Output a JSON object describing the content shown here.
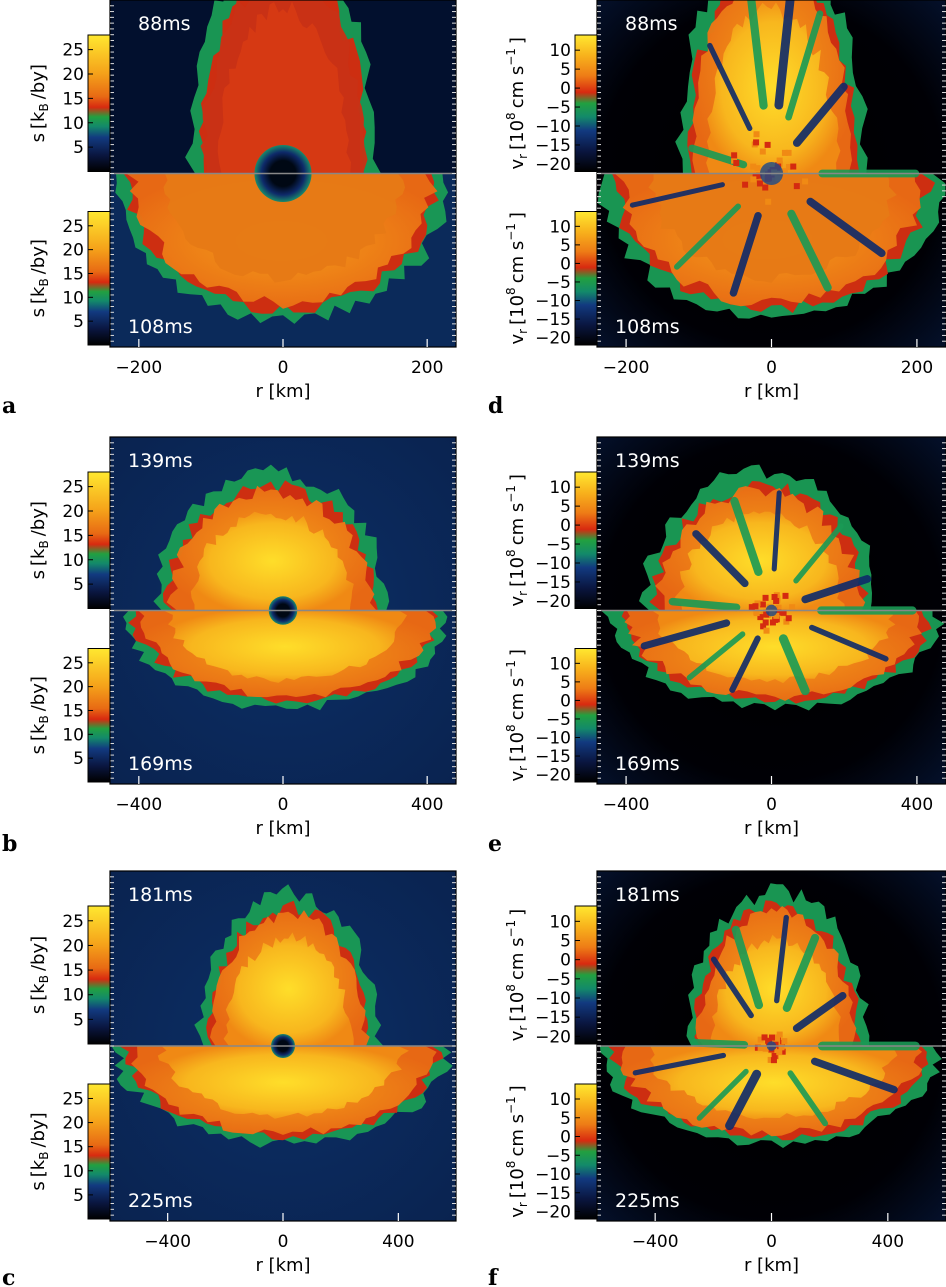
{
  "chart_data": [
    {
      "panel": "a",
      "type": "heatmap",
      "quantity": "s",
      "times": [
        "88ms",
        "108ms"
      ],
      "xlabel": "r [km]",
      "xticks": [
        "−200",
        "0",
        "200"
      ],
      "xlim": [
        -240,
        240
      ],
      "colorbar_ticks": [
        "25",
        "20",
        "15",
        "10",
        "5"
      ],
      "colorbar_range": [
        0,
        28
      ],
      "ylabel_main": "s",
      "ylabel_unit": "[k",
      "ylabel_sub": "B",
      "ylabel_end": "/by]"
    },
    {
      "panel": "b",
      "type": "heatmap",
      "quantity": "s",
      "times": [
        "139ms",
        "169ms"
      ],
      "xlabel": "r [km]",
      "xticks": [
        "−400",
        "0",
        "400"
      ],
      "xlim": [
        -480,
        480
      ],
      "colorbar_ticks": [
        "25",
        "20",
        "15",
        "10",
        "5"
      ],
      "colorbar_range": [
        0,
        28
      ],
      "ylabel_main": "s",
      "ylabel_unit": "[k",
      "ylabel_sub": "B",
      "ylabel_end": "/by]"
    },
    {
      "panel": "c",
      "type": "heatmap",
      "quantity": "s",
      "times": [
        "181ms",
        "225ms"
      ],
      "xlabel": "r [km]",
      "xticks": [
        "−400",
        "0",
        "400"
      ],
      "xlim": [
        -600,
        600
      ],
      "colorbar_ticks": [
        "25",
        "20",
        "15",
        "10",
        "5"
      ],
      "colorbar_range": [
        0,
        28
      ],
      "ylabel_main": "s",
      "ylabel_unit": "[k",
      "ylabel_sub": "B",
      "ylabel_end": "/by]"
    },
    {
      "panel": "d",
      "type": "heatmap",
      "quantity": "vr",
      "times": [
        "88ms",
        "108ms"
      ],
      "xlabel": "r [km]",
      "xticks": [
        "−200",
        "0",
        "200"
      ],
      "xlim": [
        -240,
        240
      ],
      "colorbar_ticks": [
        "10",
        "5",
        "0",
        "−5",
        "−10",
        "−15",
        "−20"
      ],
      "colorbar_range": [
        -22,
        14
      ],
      "ylabel_main": "v",
      "ylabel_sub": "r",
      "ylabel_unit": "[10",
      "ylabel_exp": "8",
      "ylabel_end": "cm s",
      "ylabel_exp2": "−1",
      "ylabel_close": "]"
    },
    {
      "panel": "e",
      "type": "heatmap",
      "quantity": "vr",
      "times": [
        "139ms",
        "169ms"
      ],
      "xlabel": "r [km]",
      "xticks": [
        "−400",
        "0",
        "400"
      ],
      "xlim": [
        -480,
        480
      ],
      "colorbar_ticks": [
        "10",
        "5",
        "0",
        "−5",
        "−10",
        "−15",
        "−20"
      ],
      "colorbar_range": [
        -22,
        14
      ],
      "ylabel_main": "v",
      "ylabel_sub": "r",
      "ylabel_unit": "[10",
      "ylabel_exp": "8",
      "ylabel_end": "cm s",
      "ylabel_exp2": "−1",
      "ylabel_close": "]"
    },
    {
      "panel": "f",
      "type": "heatmap",
      "quantity": "vr",
      "times": [
        "181ms",
        "225ms"
      ],
      "xlabel": "r [km]",
      "xticks": [
        "−400",
        "0",
        "400"
      ],
      "xlim": [
        -600,
        600
      ],
      "colorbar_ticks": [
        "10",
        "5",
        "0",
        "−5",
        "−10",
        "−15",
        "−20"
      ],
      "colorbar_range": [
        -22,
        14
      ],
      "ylabel_main": "v",
      "ylabel_sub": "r",
      "ylabel_unit": "[10",
      "ylabel_exp": "8",
      "ylabel_end": "cm s",
      "ylabel_exp2": "−1",
      "ylabel_close": "]"
    }
  ],
  "colors": {
    "entropy_bg": "#0b2a5a",
    "vel_bg": "#000000",
    "shell": "#1e9a50",
    "red": "#d42a10",
    "orange": "#f08a14",
    "yellow": "#ffd21a"
  }
}
